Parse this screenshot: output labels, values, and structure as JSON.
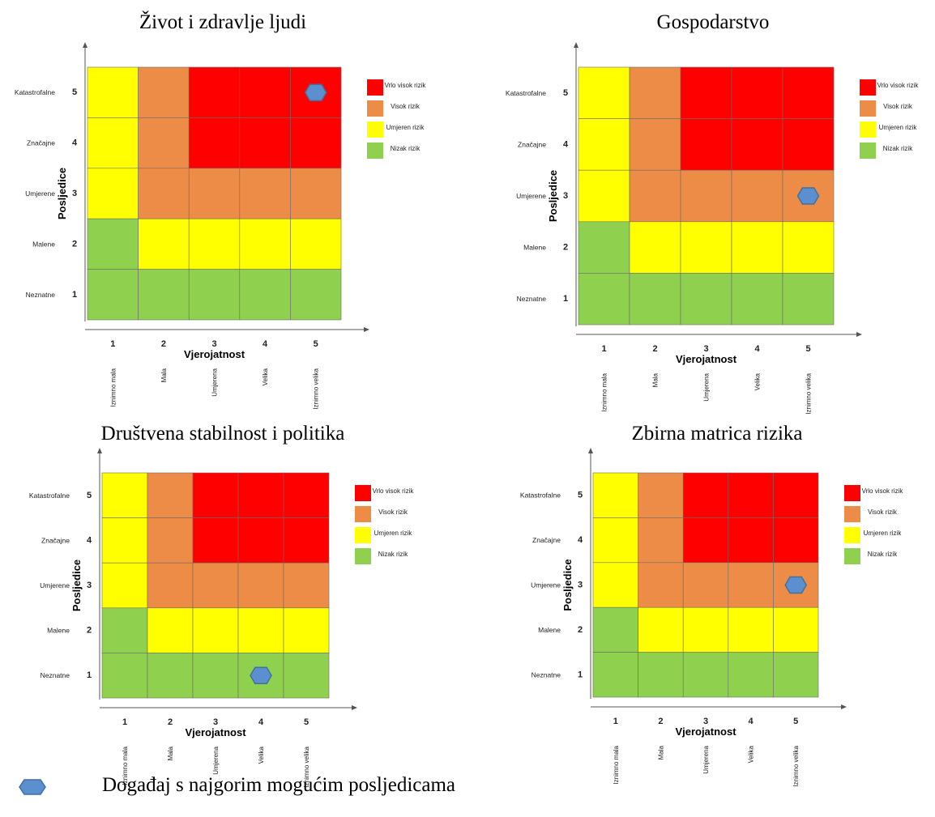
{
  "colors": {
    "very_high": "#ff0000",
    "high": "#ed8c46",
    "moderate": "#ffff00",
    "low": "#8fd14f",
    "marker": "#5b8fd0"
  },
  "axis": {
    "x_label": "Vjerojatnost",
    "y_label": "Posljedice",
    "x_ticks": [
      "1",
      "2",
      "3",
      "4",
      "5"
    ],
    "y_ticks": [
      "5",
      "4",
      "3",
      "2",
      "1"
    ],
    "x_categories": [
      "Iznimno mala",
      "Mala",
      "Umjerena",
      "Velika",
      "Iznimno velika"
    ],
    "y_categories": [
      "Katastrofalne",
      "Značajne",
      "Umjerene",
      "Malene",
      "Neznatne"
    ]
  },
  "legend": [
    {
      "label": "Vrlo visok rizik",
      "level": "very_high"
    },
    {
      "label": "Visok rizik",
      "level": "high"
    },
    {
      "label": "Umjeren rizik",
      "level": "moderate"
    },
    {
      "label": "Nizak rizik",
      "level": "low"
    }
  ],
  "footer": {
    "text": "Događaj s najgorim mogućim posljedicama",
    "icon": "hexagon-icon"
  },
  "chart_data": [
    {
      "type": "heatmap",
      "title": "Život i zdravlje ljudi",
      "xlabel": "Vjerojatnost",
      "ylabel": "Posljedice",
      "x": [
        1,
        2,
        3,
        4,
        5
      ],
      "y": [
        5,
        4,
        3,
        2,
        1
      ],
      "grid": [
        [
          "moderate",
          "high",
          "very_high",
          "very_high",
          "very_high"
        ],
        [
          "moderate",
          "high",
          "very_high",
          "very_high",
          "very_high"
        ],
        [
          "moderate",
          "high",
          "high",
          "high",
          "high"
        ],
        [
          "low",
          "moderate",
          "moderate",
          "moderate",
          "moderate"
        ],
        [
          "low",
          "low",
          "low",
          "low",
          "low"
        ]
      ],
      "event": {
        "probability": 5,
        "consequence": 5
      }
    },
    {
      "type": "heatmap",
      "title": "Gospodarstvo",
      "xlabel": "Vjerojatnost",
      "ylabel": "Posljedice",
      "x": [
        1,
        2,
        3,
        4,
        5
      ],
      "y": [
        5,
        4,
        3,
        2,
        1
      ],
      "grid": [
        [
          "moderate",
          "high",
          "very_high",
          "very_high",
          "very_high"
        ],
        [
          "moderate",
          "high",
          "very_high",
          "very_high",
          "very_high"
        ],
        [
          "moderate",
          "high",
          "high",
          "high",
          "high"
        ],
        [
          "low",
          "moderate",
          "moderate",
          "moderate",
          "moderate"
        ],
        [
          "low",
          "low",
          "low",
          "low",
          "low"
        ]
      ],
      "event": {
        "probability": 5,
        "consequence": 3
      }
    },
    {
      "type": "heatmap",
      "title": "Društvena stabilnost i politika",
      "xlabel": "Vjerojatnost",
      "ylabel": "Posljedice",
      "x": [
        1,
        2,
        3,
        4,
        5
      ],
      "y": [
        5,
        4,
        3,
        2,
        1
      ],
      "grid": [
        [
          "moderate",
          "high",
          "very_high",
          "very_high",
          "very_high"
        ],
        [
          "moderate",
          "high",
          "very_high",
          "very_high",
          "very_high"
        ],
        [
          "moderate",
          "high",
          "high",
          "high",
          "high"
        ],
        [
          "low",
          "moderate",
          "moderate",
          "moderate",
          "moderate"
        ],
        [
          "low",
          "low",
          "low",
          "low",
          "low"
        ]
      ],
      "event": {
        "probability": 4,
        "consequence": 1
      }
    },
    {
      "type": "heatmap",
      "title": "Zbirna matrica rizika",
      "xlabel": "Vjerojatnost",
      "ylabel": "Posljedice",
      "x": [
        1,
        2,
        3,
        4,
        5
      ],
      "y": [
        5,
        4,
        3,
        2,
        1
      ],
      "grid": [
        [
          "moderate",
          "high",
          "very_high",
          "very_high",
          "very_high"
        ],
        [
          "moderate",
          "high",
          "very_high",
          "very_high",
          "very_high"
        ],
        [
          "moderate",
          "high",
          "high",
          "high",
          "high"
        ],
        [
          "low",
          "moderate",
          "moderate",
          "moderate",
          "moderate"
        ],
        [
          "low",
          "low",
          "low",
          "low",
          "low"
        ]
      ],
      "event": {
        "probability": 5,
        "consequence": 3
      }
    }
  ]
}
